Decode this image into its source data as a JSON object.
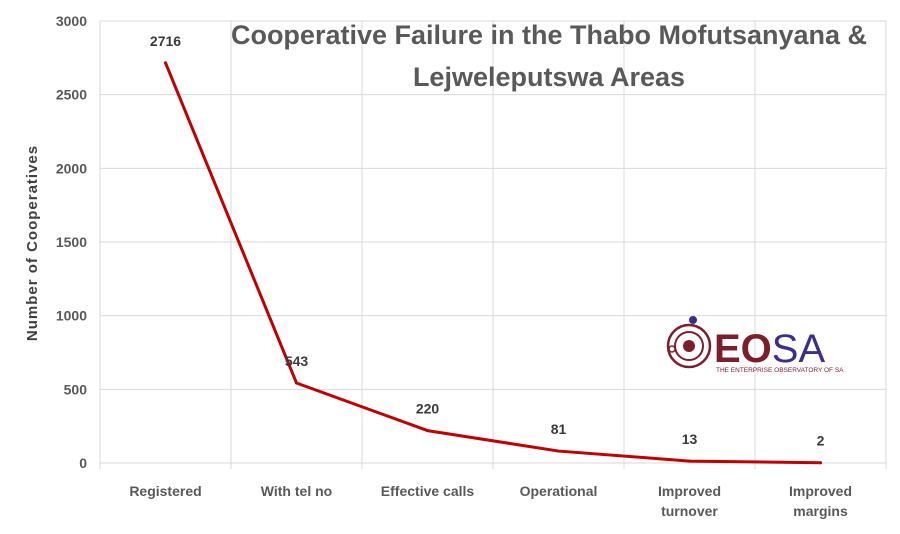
{
  "chart_data": {
    "type": "line",
    "title_lines": [
      "Cooperative Failure in the Thabo Mofutsanyana &",
      "Lejweleputswa Areas"
    ],
    "ylabel": "Number of Cooperatives",
    "xlabel": "",
    "categories": [
      [
        "Registered"
      ],
      [
        "With tel no"
      ],
      [
        "Effective calls"
      ],
      [
        "Operational"
      ],
      [
        "Improved",
        "turnover"
      ],
      [
        "Improved",
        "margins"
      ]
    ],
    "series": [
      {
        "values": [
          2716,
          543,
          220,
          81,
          13,
          2
        ],
        "color": "#c00000"
      }
    ],
    "ylim": [
      0,
      3000
    ],
    "yticks": [
      0,
      500,
      1000,
      1500,
      2000,
      2500,
      3000
    ],
    "grid": true,
    "legend": "none"
  },
  "logo": {
    "word_dark": "EO",
    "word_light": "SA",
    "tagline": "THE ENTERPRISE OBSERVATORY OF SA",
    "color_dark": "#7a1f2b",
    "color_light": "#3d2e8c"
  }
}
